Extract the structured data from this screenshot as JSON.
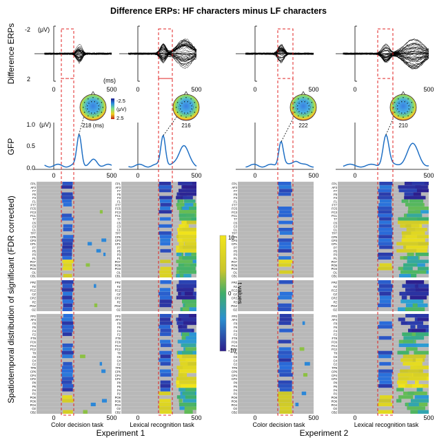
{
  "title": "Difference ERPs: HF characters minus LF characters",
  "row_labels": {
    "erp": "Difference ERPs",
    "gfp": "GFP",
    "spatiotemporal": "Spatiotemporal distribution of significant (FDR corrected)"
  },
  "erp_axis": {
    "unit": "(μV)",
    "tick_top": "-2",
    "tick_bottom": "2",
    "time_unit": "(ms)"
  },
  "gfp_axis": {
    "unit": "(μV)",
    "tick_top": "1.0",
    "tick_mid": "0.5",
    "tick_bottom": "0.0"
  },
  "time_ticks": [
    "0",
    "500"
  ],
  "panels": [
    {
      "task": "Color decision task",
      "experiment": "Experiment 1",
      "peak_label": "218 (ms)"
    },
    {
      "task": "Lexical recognition task",
      "experiment": "Experiment 1",
      "peak_label": "216"
    },
    {
      "task": "Color decision task",
      "experiment": "Experiment 2",
      "peak_label": "222"
    },
    {
      "task": "Lexical recognition task",
      "experiment": "Experiment 2",
      "peak_label": "210"
    }
  ],
  "experiments": [
    "Experiment 1",
    "Experiment 2"
  ],
  "topo_scale": {
    "max": "-2.5",
    "unit": "(μV)",
    "min": "2.5"
  },
  "colorbar": {
    "label": "t values",
    "max": "10",
    "mid": "0",
    "min": "-10"
  },
  "colors": {
    "gfp_line": "#1f6fc4",
    "highlight_box": "#e02020",
    "raster_bg": "#b8b8b8",
    "raster_grid": "#d8d8d8"
  },
  "channels": {
    "group1": [
      "FP1",
      "AF3",
      "F7",
      "F5",
      "F3",
      "F1",
      "FT7",
      "FC5",
      "FC3",
      "FC1",
      "T7",
      "C5",
      "C3",
      "C1",
      "TP7",
      "CP5",
      "CP3",
      "CP1",
      "P7",
      "P5",
      "P3",
      "P1",
      "PO7",
      "PO5",
      "PO3",
      "O1",
      "CB1"
    ],
    "group2": [
      "FPZ",
      "FZ",
      "FCZ",
      "CZ",
      "CPZ",
      "PZ",
      "POZ",
      "OZ"
    ],
    "group3": [
      "FP2",
      "AF4",
      "F8",
      "F6",
      "F4",
      "F2",
      "FT8",
      "FC6",
      "FC4",
      "FC2",
      "T8",
      "C6",
      "C4",
      "C2",
      "TP8",
      "CP6",
      "CP4",
      "CP2",
      "P8",
      "P6",
      "P4",
      "P2",
      "PO8",
      "PO6",
      "PO4",
      "O2",
      "CB2"
    ]
  }
}
